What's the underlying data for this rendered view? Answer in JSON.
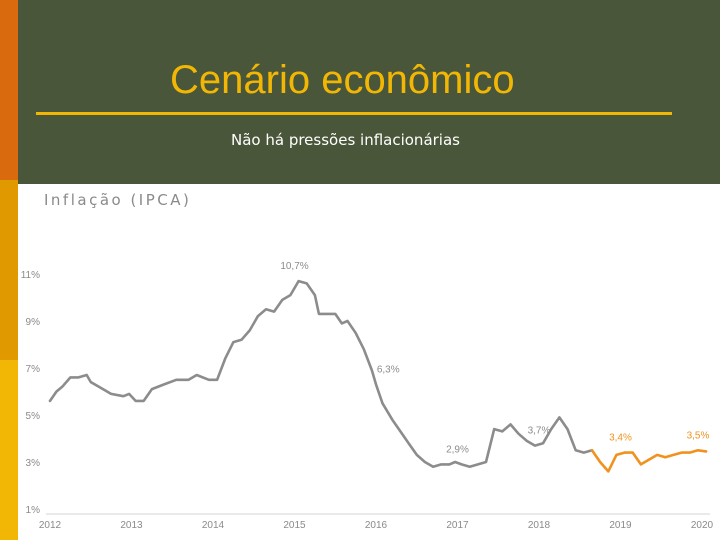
{
  "slide": {
    "title": "Cenário econômico",
    "subtitle": "Não há pressões inflacionárias"
  },
  "colors": {
    "background": "#4a5639",
    "accent": "#f2b705",
    "historical_line": "#8c8c8c",
    "forecast_line": "#f0921e"
  },
  "chart_data": {
    "type": "line",
    "title": "Inflação (IPCA)",
    "xlabel": "",
    "ylabel": "",
    "xlim": [
      2012,
      2020
    ],
    "ylim": [
      1,
      11
    ],
    "x_ticks": [
      "2012",
      "2013",
      "2014",
      "2015",
      "2016",
      "2017",
      "2018",
      "2019",
      "2020"
    ],
    "y_ticks": [
      "1%",
      "3%",
      "5%",
      "7%",
      "9%",
      "11%"
    ],
    "grid": false,
    "legend": "none",
    "series": [
      {
        "style": "historical",
        "points": [
          [
            2012.0,
            5.6
          ],
          [
            2012.08,
            6.0
          ],
          [
            2012.15,
            6.2
          ],
          [
            2012.25,
            6.6
          ],
          [
            2012.35,
            6.6
          ],
          [
            2012.45,
            6.7
          ],
          [
            2012.5,
            6.4
          ],
          [
            2012.6,
            6.2
          ],
          [
            2012.75,
            5.9
          ],
          [
            2012.9,
            5.8
          ],
          [
            2012.97,
            5.9
          ],
          [
            2013.05,
            5.6
          ],
          [
            2013.15,
            5.6
          ],
          [
            2013.25,
            6.1
          ],
          [
            2013.4,
            6.3
          ],
          [
            2013.55,
            6.5
          ],
          [
            2013.7,
            6.5
          ],
          [
            2013.8,
            6.7
          ],
          [
            2013.95,
            6.5
          ],
          [
            2014.05,
            6.5
          ],
          [
            2014.15,
            7.4
          ],
          [
            2014.25,
            8.1
          ],
          [
            2014.35,
            8.2
          ],
          [
            2014.45,
            8.6
          ],
          [
            2014.55,
            9.2
          ],
          [
            2014.65,
            9.5
          ],
          [
            2014.75,
            9.4
          ],
          [
            2014.85,
            9.9
          ],
          [
            2014.95,
            10.1
          ],
          [
            2015.05,
            10.7
          ],
          [
            2015.15,
            10.6
          ],
          [
            2015.25,
            10.1
          ],
          [
            2015.3,
            9.3
          ],
          [
            2015.4,
            9.3
          ],
          [
            2015.5,
            9.3
          ],
          [
            2015.58,
            8.9
          ],
          [
            2015.65,
            9.0
          ],
          [
            2015.75,
            8.5
          ],
          [
            2015.85,
            7.8
          ],
          [
            2015.95,
            6.9
          ],
          [
            2016.0,
            6.3
          ],
          [
            2016.08,
            5.5
          ],
          [
            2016.2,
            4.8
          ],
          [
            2016.3,
            4.3
          ],
          [
            2016.4,
            3.8
          ],
          [
            2016.5,
            3.3
          ],
          [
            2016.6,
            3.0
          ],
          [
            2016.7,
            2.8
          ],
          [
            2016.8,
            2.9
          ],
          [
            2016.9,
            2.9
          ],
          [
            2016.97,
            3.0
          ],
          [
            2017.05,
            2.9
          ],
          [
            2017.15,
            2.8
          ],
          [
            2017.25,
            2.9
          ],
          [
            2017.35,
            3.0
          ],
          [
            2017.45,
            4.4
          ],
          [
            2017.55,
            4.3
          ],
          [
            2017.65,
            4.6
          ],
          [
            2017.75,
            4.2
          ],
          [
            2017.85,
            3.9
          ],
          [
            2017.95,
            3.7
          ],
          [
            2018.05,
            3.8
          ],
          [
            2018.15,
            4.4
          ],
          [
            2018.25,
            4.9
          ],
          [
            2018.35,
            4.4
          ],
          [
            2018.45,
            3.5
          ],
          [
            2018.55,
            3.4
          ],
          [
            2018.65,
            3.5
          ]
        ]
      },
      {
        "style": "forecast",
        "points": [
          [
            2018.65,
            3.5
          ],
          [
            2018.75,
            3.0
          ],
          [
            2018.85,
            2.6
          ],
          [
            2018.95,
            3.3
          ],
          [
            2019.05,
            3.4
          ],
          [
            2019.15,
            3.4
          ],
          [
            2019.25,
            2.9
          ],
          [
            2019.35,
            3.1
          ],
          [
            2019.45,
            3.3
          ],
          [
            2019.55,
            3.2
          ],
          [
            2019.65,
            3.3
          ],
          [
            2019.75,
            3.4
          ],
          [
            2019.85,
            3.4
          ],
          [
            2019.95,
            3.5
          ],
          [
            2020.05,
            3.45
          ]
        ]
      }
    ],
    "annotations": [
      {
        "x": 2015.0,
        "y": 10.7,
        "text": "10,7%",
        "style": "historical"
      },
      {
        "x": 2016.15,
        "y": 6.3,
        "text": "6,3%",
        "style": "historical"
      },
      {
        "x": 2017.0,
        "y": 2.9,
        "text": "2,9%",
        "style": "historical"
      },
      {
        "x": 2018.0,
        "y": 3.7,
        "text": "3,7%",
        "style": "historical"
      },
      {
        "x": 2019.0,
        "y": 3.4,
        "text": "3,4%",
        "style": "forecast"
      },
      {
        "x": 2020.0,
        "y": 3.5,
        "text": "3,5%",
        "style": "forecast"
      }
    ]
  }
}
